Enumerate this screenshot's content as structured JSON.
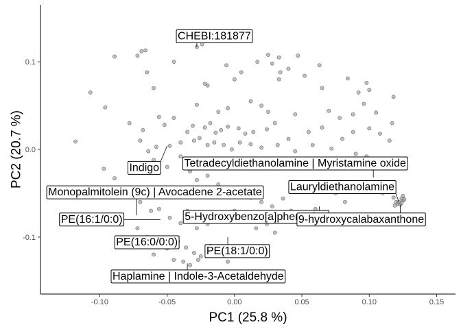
{
  "chart_data": {
    "type": "scatter",
    "title": "",
    "xlabel": "PC1 (25.8 %)",
    "ylabel": "PC2 (20.7 %)",
    "xlim": [
      -0.144,
      0.164
    ],
    "ylim": [
      -0.165,
      0.165
    ],
    "xticks": [
      -0.1,
      -0.05,
      0.0,
      0.05,
      0.1,
      0.15
    ],
    "xtick_labels": [
      "-0.10",
      "-0.05",
      "0.00",
      "0.05",
      "0.10",
      "0.15"
    ],
    "yticks": [
      -0.1,
      0.0,
      0.1
    ],
    "ytick_labels": [
      "-0.1",
      "0.0",
      "0.1"
    ],
    "grid": false,
    "colors": {
      "point_fill": "#a6a6a6",
      "point_stroke": "#4d4d4d",
      "axis": "#000000",
      "tick_text": "#4d4d4d"
    },
    "points": [
      {
        "x": -0.028,
        "y": 0.117
      },
      {
        "x": -0.024,
        "y": 0.12
      },
      {
        "x": -0.069,
        "y": 0.112
      },
      {
        "x": -0.066,
        "y": 0.113
      },
      {
        "x": -0.072,
        "y": 0.107
      },
      {
        "x": -0.089,
        "y": 0.106
      },
      {
        "x": -0.045,
        "y": 0.1
      },
      {
        "x": -0.02,
        "y": 0.073
      },
      {
        "x": -0.006,
        "y": 0.096
      },
      {
        "x": 0.005,
        "y": 0.088
      },
      {
        "x": 0.017,
        "y": 0.1
      },
      {
        "x": 0.033,
        "y": 0.105
      },
      {
        "x": 0.034,
        "y": 0.088
      },
      {
        "x": 0.04,
        "y": 0.092
      },
      {
        "x": 0.025,
        "y": 0.108
      },
      {
        "x": 0.028,
        "y": 0.098
      },
      {
        "x": 0.033,
        "y": 0.08
      },
      {
        "x": 0.047,
        "y": 0.107
      },
      {
        "x": 0.052,
        "y": 0.084
      },
      {
        "x": 0.063,
        "y": 0.096
      },
      {
        "x": 0.065,
        "y": 0.07
      },
      {
        "x": 0.084,
        "y": 0.081
      },
      {
        "x": 0.092,
        "y": 0.065
      },
      {
        "x": 0.098,
        "y": 0.076
      },
      {
        "x": 0.1,
        "y": 0.068
      },
      {
        "x": 0.118,
        "y": 0.06
      },
      {
        "x": -0.107,
        "y": 0.065
      },
      {
        "x": -0.096,
        "y": 0.048
      },
      {
        "x": -0.065,
        "y": 0.088
      },
      {
        "x": -0.06,
        "y": 0.07
      },
      {
        "x": -0.028,
        "y": 0.051
      },
      {
        "x": -0.022,
        "y": 0.075
      },
      {
        "x": -0.012,
        "y": 0.043
      },
      {
        "x": -0.005,
        "y": 0.047
      },
      {
        "x": 0.0,
        "y": 0.08
      },
      {
        "x": 0.012,
        "y": 0.055
      },
      {
        "x": 0.02,
        "y": 0.05
      },
      {
        "x": 0.025,
        "y": 0.043
      },
      {
        "x": 0.045,
        "y": 0.04
      },
      {
        "x": 0.07,
        "y": 0.044
      },
      {
        "x": 0.078,
        "y": 0.036
      },
      {
        "x": 0.088,
        "y": 0.04
      },
      {
        "x": 0.096,
        "y": 0.052
      },
      {
        "x": 0.105,
        "y": 0.042
      },
      {
        "x": 0.117,
        "y": 0.03
      },
      {
        "x": -0.118,
        "y": 0.009
      },
      {
        "x": -0.078,
        "y": 0.03
      },
      {
        "x": -0.068,
        "y": 0.022
      },
      {
        "x": -0.056,
        "y": 0.037
      },
      {
        "x": -0.052,
        "y": 0.028
      },
      {
        "x": -0.045,
        "y": 0.036
      },
      {
        "x": -0.035,
        "y": 0.02
      },
      {
        "x": -0.031,
        "y": 0.027
      },
      {
        "x": -0.026,
        "y": 0.013
      },
      {
        "x": -0.022,
        "y": 0.025
      },
      {
        "x": -0.018,
        "y": 0.03
      },
      {
        "x": -0.014,
        "y": 0.019
      },
      {
        "x": -0.01,
        "y": 0.022
      },
      {
        "x": -0.005,
        "y": 0.026
      },
      {
        "x": 0.003,
        "y": 0.024
      },
      {
        "x": 0.008,
        "y": 0.018
      },
      {
        "x": 0.014,
        "y": 0.02
      },
      {
        "x": 0.024,
        "y": 0.023
      },
      {
        "x": 0.03,
        "y": 0.03
      },
      {
        "x": 0.04,
        "y": 0.012
      },
      {
        "x": 0.055,
        "y": 0.02
      },
      {
        "x": 0.065,
        "y": 0.025
      },
      {
        "x": 0.08,
        "y": 0.012
      },
      {
        "x": 0.088,
        "y": 0.02
      },
      {
        "x": 0.1,
        "y": 0.024
      },
      {
        "x": 0.108,
        "y": 0.018
      },
      {
        "x": 0.115,
        "y": 0.01
      },
      {
        "x": -0.07,
        "y": 0.01
      },
      {
        "x": -0.064,
        "y": -0.002
      },
      {
        "x": -0.058,
        "y": 0.003
      },
      {
        "x": -0.048,
        "y": 0.004
      },
      {
        "x": -0.04,
        "y": 0.008
      },
      {
        "x": -0.03,
        "y": 0.01
      },
      {
        "x": -0.02,
        "y": 0.005
      },
      {
        "x": -0.015,
        "y": 0.008
      },
      {
        "x": -0.008,
        "y": 0.005
      },
      {
        "x": -0.002,
        "y": 0.0
      },
      {
        "x": 0.004,
        "y": 0.008
      },
      {
        "x": 0.012,
        "y": 0.006
      },
      {
        "x": 0.02,
        "y": 0.002
      },
      {
        "x": 0.032,
        "y": 0.005
      },
      {
        "x": 0.045,
        "y": -0.002
      },
      {
        "x": 0.058,
        "y": 0.005
      },
      {
        "x": 0.072,
        "y": 0.001
      },
      {
        "x": 0.09,
        "y": -0.005
      },
      {
        "x": 0.098,
        "y": -0.008
      },
      {
        "x": -0.097,
        "y": -0.022
      },
      {
        "x": -0.089,
        "y": -0.033
      },
      {
        "x": -0.06,
        "y": -0.012
      },
      {
        "x": -0.05,
        "y": -0.02
      },
      {
        "x": -0.04,
        "y": -0.008
      },
      {
        "x": -0.033,
        "y": -0.025
      },
      {
        "x": -0.028,
        "y": -0.035
      },
      {
        "x": -0.02,
        "y": -0.03
      },
      {
        "x": -0.012,
        "y": -0.04
      },
      {
        "x": -0.005,
        "y": -0.045
      },
      {
        "x": 0.004,
        "y": -0.05
      },
      {
        "x": 0.012,
        "y": -0.055
      },
      {
        "x": 0.02,
        "y": -0.06
      },
      {
        "x": 0.028,
        "y": -0.065
      },
      {
        "x": 0.036,
        "y": -0.056
      },
      {
        "x": 0.042,
        "y": -0.07
      },
      {
        "x": 0.05,
        "y": -0.075
      },
      {
        "x": 0.06,
        "y": -0.068
      },
      {
        "x": 0.075,
        "y": -0.05
      },
      {
        "x": 0.082,
        "y": -0.06
      },
      {
        "x": 0.088,
        "y": -0.048
      },
      {
        "x": 0.1,
        "y": -0.045
      },
      {
        "x": 0.11,
        "y": -0.05
      },
      {
        "x": 0.118,
        "y": -0.055
      },
      {
        "x": 0.12,
        "y": -0.06
      },
      {
        "x": 0.121,
        "y": -0.062
      },
      {
        "x": 0.122,
        "y": -0.06
      },
      {
        "x": 0.123,
        "y": -0.063
      },
      {
        "x": 0.124,
        "y": -0.061
      },
      {
        "x": 0.125,
        "y": -0.058
      },
      {
        "x": 0.125,
        "y": -0.053
      },
      {
        "x": 0.124,
        "y": -0.056
      },
      {
        "x": 0.119,
        "y": -0.064
      },
      {
        "x": 0.126,
        "y": -0.057
      },
      {
        "x": -0.078,
        "y": -0.05
      },
      {
        "x": -0.07,
        "y": -0.06
      },
      {
        "x": -0.062,
        "y": -0.07
      },
      {
        "x": -0.056,
        "y": -0.068
      },
      {
        "x": -0.048,
        "y": -0.078
      },
      {
        "x": -0.04,
        "y": -0.084
      },
      {
        "x": -0.035,
        "y": -0.07
      },
      {
        "x": -0.028,
        "y": -0.09
      },
      {
        "x": -0.02,
        "y": -0.085
      },
      {
        "x": -0.015,
        "y": -0.073
      },
      {
        "x": -0.008,
        "y": -0.08
      },
      {
        "x": 0.0,
        "y": -0.07
      },
      {
        "x": 0.008,
        "y": -0.078
      },
      {
        "x": 0.016,
        "y": -0.09
      },
      {
        "x": 0.024,
        "y": -0.085
      },
      {
        "x": 0.03,
        "y": -0.095
      },
      {
        "x": -0.072,
        "y": -0.09
      },
      {
        "x": -0.065,
        "y": -0.1
      },
      {
        "x": -0.058,
        "y": -0.108
      },
      {
        "x": -0.05,
        "y": -0.113
      },
      {
        "x": -0.042,
        "y": -0.105
      },
      {
        "x": -0.036,
        "y": -0.112
      },
      {
        "x": -0.03,
        "y": -0.118
      },
      {
        "x": -0.025,
        "y": -0.122
      },
      {
        "x": -0.018,
        "y": -0.11
      },
      {
        "x": -0.01,
        "y": -0.115
      },
      {
        "x": -0.005,
        "y": -0.128
      },
      {
        "x": -0.038,
        "y": -0.128
      },
      {
        "x": -0.033,
        "y": -0.132
      },
      {
        "x": -0.027,
        "y": -0.126
      },
      {
        "x": -0.045,
        "y": -0.126
      },
      {
        "x": -0.06,
        "y": -0.12
      },
      {
        "x": 0.085,
        "y": -0.08
      }
    ],
    "labels": [
      {
        "text": "CHEBI:181877",
        "x": -0.028,
        "y": 0.117,
        "lx": -0.015,
        "ly": 0.129
      },
      {
        "text": "Indigo",
        "x": -0.05,
        "y": 0.004,
        "lx": -0.067,
        "ly": -0.021
      },
      {
        "text": "Tetradecyldiethanolamine | Myristamine oxide",
        "x": 0.103,
        "y": -0.032,
        "lx": 0.045,
        "ly": -0.016
      },
      {
        "text": "Lauryldiethanolamine",
        "x": 0.122,
        "y": -0.06,
        "lx": 0.08,
        "ly": -0.043
      },
      {
        "text": "Monopalmitolein (9c) | Avocadene 2-acetate",
        "x": -0.073,
        "y": -0.075,
        "lx": -0.059,
        "ly": -0.049
      },
      {
        "text": "PE(16:1/0:0)",
        "x": -0.055,
        "y": -0.08,
        "lx": -0.106,
        "ly": -0.08
      },
      {
        "text": "5-Hydroxybenzo[a]phenazine",
        "x": 0.063,
        "y": -0.065,
        "lx": 0.016,
        "ly": -0.077
      },
      {
        "text": "9-hydroxycalabaxanthone",
        "x": 0.123,
        "y": -0.063,
        "lx": 0.094,
        "ly": -0.08
      },
      {
        "text": "PE(16:0/0:0)",
        "x": -0.045,
        "y": -0.098,
        "lx": -0.065,
        "ly": -0.106
      },
      {
        "text": "PE(18:1/0:0)",
        "x": -0.005,
        "y": -0.1,
        "lx": 0.002,
        "ly": -0.116
      },
      {
        "text": "Haplamine | Indole-3-Acetaldehyde",
        "x": -0.035,
        "y": -0.13,
        "lx": -0.027,
        "ly": -0.145
      }
    ]
  }
}
